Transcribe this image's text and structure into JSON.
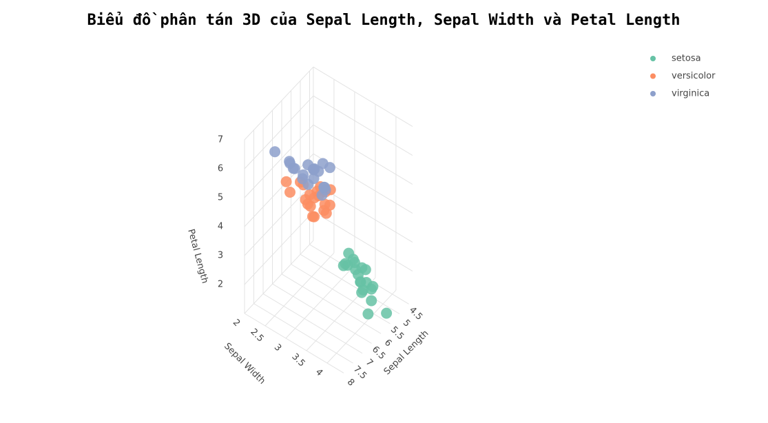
{
  "chart_data": {
    "type": "scatter3d",
    "title": "Biểu đồ phân tán 3D của Sepal Length, Sepal Width và Petal Length",
    "xlabel": "Sepal Length",
    "ylabel": "Sepal Width",
    "zlabel": "Petal Length",
    "xlim": [
      4.3,
      8
    ],
    "ylim": [
      2,
      4.4
    ],
    "zlim": [
      1,
      7
    ],
    "xticks": [
      4.5,
      5,
      5.5,
      6,
      6.5,
      7,
      7.5,
      8
    ],
    "yticks": [
      2,
      2.5,
      3,
      3.5,
      4
    ],
    "zticks": [
      2,
      3,
      4,
      5,
      6,
      7
    ],
    "grid": true,
    "legend": "top-right",
    "series": [
      {
        "name": "setosa",
        "color": "#66c2a5",
        "x": [
          5.1,
          4.9,
          4.7,
          4.6,
          5.0,
          5.4,
          4.6,
          5.0,
          4.4,
          4.9,
          5.4,
          4.8,
          4.8,
          4.3,
          5.8,
          5.7,
          5.4,
          5.1,
          5.7,
          5.1
        ],
        "y": [
          3.5,
          3.0,
          3.2,
          3.1,
          3.6,
          3.9,
          3.4,
          3.4,
          2.9,
          3.1,
          3.7,
          3.4,
          3.0,
          3.0,
          4.0,
          4.4,
          3.9,
          3.5,
          3.8,
          3.8
        ],
        "z": [
          1.4,
          1.4,
          1.3,
          1.5,
          1.4,
          1.7,
          1.4,
          1.5,
          1.4,
          1.5,
          1.5,
          1.6,
          1.4,
          1.1,
          1.2,
          1.5,
          1.3,
          1.4,
          1.7,
          1.5
        ]
      },
      {
        "name": "versicolor",
        "color": "#fc8d62",
        "x": [
          7.0,
          6.4,
          6.9,
          5.5,
          6.5,
          5.7,
          6.3,
          4.9,
          6.6,
          5.2,
          5.0,
          5.9,
          6.0,
          6.1,
          5.6,
          6.7,
          5.6,
          5.8,
          6.2,
          5.6
        ],
        "y": [
          3.2,
          3.2,
          3.1,
          2.3,
          2.8,
          2.8,
          3.3,
          2.4,
          2.9,
          2.7,
          2.0,
          3.0,
          2.2,
          2.9,
          2.9,
          3.1,
          3.0,
          2.7,
          2.2,
          2.5
        ],
        "z": [
          4.7,
          4.5,
          4.9,
          4.0,
          4.6,
          4.5,
          4.7,
          3.3,
          4.6,
          3.9,
          3.5,
          4.2,
          4.0,
          4.7,
          3.6,
          4.4,
          4.5,
          4.1,
          4.5,
          3.9
        ]
      },
      {
        "name": "virginica",
        "color": "#8da0cb",
        "x": [
          6.3,
          5.8,
          7.1,
          6.3,
          6.5,
          7.6,
          4.9,
          7.3,
          6.7,
          7.2,
          6.5,
          6.4,
          6.8,
          5.7,
          5.8,
          6.4,
          6.5,
          7.7,
          7.7,
          6.0
        ],
        "y": [
          3.3,
          2.7,
          3.0,
          2.9,
          3.0,
          3.0,
          2.5,
          2.9,
          2.5,
          3.6,
          3.2,
          2.7,
          3.0,
          2.5,
          2.8,
          3.2,
          3.0,
          3.8,
          2.6,
          2.2
        ],
        "z": [
          6.0,
          5.1,
          5.9,
          5.6,
          5.8,
          6.6,
          4.5,
          6.3,
          5.8,
          6.1,
          5.1,
          5.3,
          5.5,
          5.0,
          5.1,
          5.3,
          5.5,
          6.7,
          6.9,
          5.0
        ]
      }
    ]
  }
}
